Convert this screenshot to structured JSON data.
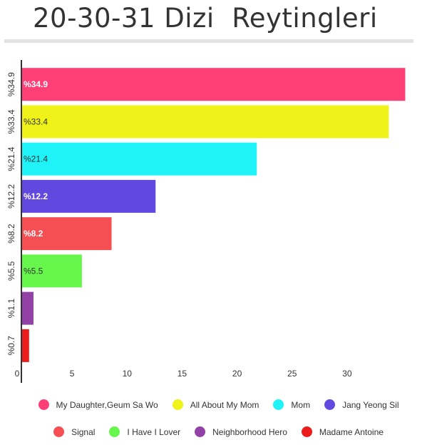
{
  "title": "20-30-31 Dizi  Reytingleri",
  "chart_data": {
    "type": "bar",
    "orientation": "horizontal",
    "categories": [
      "%34.9",
      "%33.4",
      "%21.4",
      "%12.2",
      "%8.2",
      "%5.5",
      "%1.1",
      "%0.7"
    ],
    "values": [
      34.9,
      33.4,
      21.4,
      12.2,
      8.2,
      5.5,
      1.1,
      0.7
    ],
    "data_labels": [
      "%34.9",
      "%33.4",
      "%21.4",
      "%12.2",
      "%8.2",
      "%5.5",
      "",
      ""
    ],
    "colors": [
      "#fe4077",
      "#eff31a",
      "#1ff3f7",
      "#6148df",
      "#f64f53",
      "#66f64c",
      "#9242a6",
      "#ec1c1c"
    ],
    "label_colors": [
      "#ffffff",
      "#333333",
      "#333333",
      "#ffffff",
      "#ffffff",
      "#333333",
      "#333333",
      "#333333"
    ],
    "series_names": [
      "My Daughter,Geum Sa Wo",
      "All About My Mom",
      "Mom",
      "Jang Yeong Sil",
      "Signal",
      "I Have I Lover",
      "Neighborhood Hero",
      "Madame Antoine"
    ],
    "xlim": [
      0,
      35
    ],
    "xticks": [
      0,
      5,
      10,
      15,
      20,
      25,
      30
    ],
    "grid": false,
    "legend_position": "bottom"
  }
}
